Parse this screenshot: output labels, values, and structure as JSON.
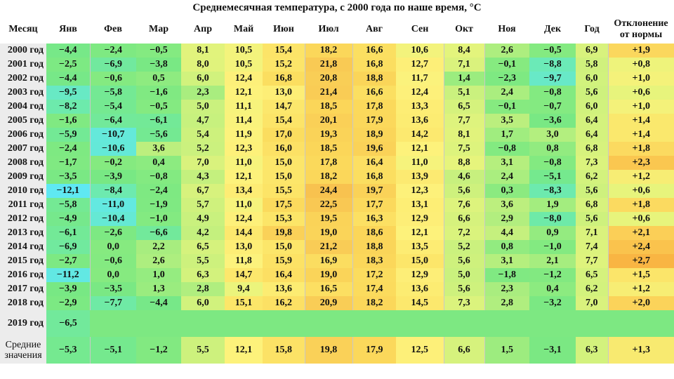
{
  "title": "Среднемесячная температура, с 2000 года по наше время, °C",
  "headers": [
    "Месяц",
    "Янв",
    "Фев",
    "Мар",
    "Апр",
    "Май",
    "Июн",
    "Июл",
    "Авг",
    "Сен",
    "Окт",
    "Ноя",
    "Дек",
    "Год",
    "Отклонение от нормы"
  ],
  "rows": [
    {
      "label": "2000 год",
      "values": [
        "−4,4",
        "−2,4",
        "−0,5",
        "8,1",
        "10,5",
        "15,4",
        "18,2",
        "16,6",
        "10,6",
        "8,4",
        "2,6",
        "−0,5",
        "6,9",
        "+1,9"
      ]
    },
    {
      "label": "2001 год",
      "values": [
        "−2,5",
        "−6,9",
        "−3,8",
        "8,0",
        "10,5",
        "15,2",
        "21,8",
        "16,8",
        "12,7",
        "7,1",
        "−0,1",
        "−8,8",
        "5,8",
        "+0,8"
      ]
    },
    {
      "label": "2002 год",
      "values": [
        "−4,4",
        "−0,6",
        "0,5",
        "6,0",
        "12,4",
        "16,8",
        "20,8",
        "18,8",
        "11,7",
        "1,4",
        "−2,3",
        "−9,7",
        "6,0",
        "+1,0"
      ]
    },
    {
      "label": "2003 год",
      "values": [
        "−9,5",
        "−5,8",
        "−1,6",
        "2,3",
        "12,1",
        "13,0",
        "21,4",
        "16,6",
        "12,4",
        "5,1",
        "2,4",
        "−0,8",
        "5,6",
        "+0,6"
      ]
    },
    {
      "label": "2004 год",
      "values": [
        "−8,2",
        "−5,4",
        "−0,5",
        "5,0",
        "11,1",
        "14,7",
        "18,5",
        "17,8",
        "13,3",
        "6,5",
        "−0,1",
        "−0,7",
        "6,0",
        "+1,0"
      ]
    },
    {
      "label": "2005 год",
      "values": [
        "−1,6",
        "−6,4",
        "−6,1",
        "4,7",
        "11,4",
        "15,4",
        "20,1",
        "17,9",
        "13,6",
        "7,7",
        "3,5",
        "−3,6",
        "6,4",
        "+1,4"
      ]
    },
    {
      "label": "2006 год",
      "values": [
        "−5,9",
        "−10,7",
        "−5,6",
        "5,4",
        "11,9",
        "17,0",
        "19,3",
        "18,9",
        "14,2",
        "8,1",
        "1,7",
        "3,0",
        "6,4",
        "+1,4"
      ]
    },
    {
      "label": "2007 год",
      "values": [
        "−2,4",
        "−10,6",
        "3,6",
        "5,2",
        "12,3",
        "16,0",
        "18,5",
        "19,6",
        "12,1",
        "7,5",
        "−0,8",
        "0,8",
        "6,8",
        "+1,8"
      ]
    },
    {
      "label": "2008 год",
      "values": [
        "−1,7",
        "−0,2",
        "0,4",
        "7,0",
        "11,0",
        "15,0",
        "17,8",
        "16,4",
        "11,0",
        "8,8",
        "3,1",
        "−0,8",
        "7,3",
        "+2,3"
      ]
    },
    {
      "label": "2009 год",
      "values": [
        "−3,5",
        "−3,9",
        "−0,8",
        "4,3",
        "12,1",
        "15,0",
        "18,2",
        "16,8",
        "13,9",
        "4,6",
        "2,4",
        "−5,1",
        "6,2",
        "+1,2"
      ]
    },
    {
      "label": "2010 год",
      "values": [
        "−12,1",
        "−8,4",
        "−2,4",
        "6,7",
        "13,4",
        "15,5",
        "24,4",
        "19,7",
        "12,3",
        "5,6",
        "0,3",
        "−8,3",
        "5,6",
        "+0,6"
      ]
    },
    {
      "label": "2011 год",
      "values": [
        "−5,8",
        "−11,0",
        "−1,9",
        "5,7",
        "11,0",
        "17,5",
        "22,5",
        "17,7",
        "13,1",
        "7,6",
        "3,6",
        "1,9",
        "6,8",
        "+1,8"
      ]
    },
    {
      "label": "2012 год",
      "values": [
        "−4,9",
        "−10,4",
        "−1,0",
        "4,9",
        "12,4",
        "15,3",
        "19,5",
        "16,3",
        "12,9",
        "6,6",
        "2,9",
        "−8,0",
        "5,6",
        "+0,6"
      ]
    },
    {
      "label": "2013 год",
      "values": [
        "−6,1",
        "−2,6",
        "−6,6",
        "4,2",
        "14,4",
        "19,8",
        "19,0",
        "18,6",
        "12,1",
        "7,2",
        "4,4",
        "0,9",
        "7,1",
        "+2,1"
      ]
    },
    {
      "label": "2014 год",
      "values": [
        "−6,9",
        "0,0",
        "2,2",
        "6,5",
        "13,0",
        "15,0",
        "21,2",
        "18,8",
        "13,5",
        "5,2",
        "0,8",
        "−1,0",
        "7,4",
        "+2,4"
      ]
    },
    {
      "label": "2015 год",
      "values": [
        "−2,7",
        "−0,6",
        "2,6",
        "5,5",
        "11,8",
        "15,9",
        "16,9",
        "18,3",
        "15,0",
        "5,6",
        "3,1",
        "2,1",
        "7,7",
        "+2,7"
      ]
    },
    {
      "label": "2016 год",
      "values": [
        "−11,2",
        "0,0",
        "1,0",
        "6,3",
        "14,7",
        "16,4",
        "19,0",
        "17,2",
        "12,9",
        "5,0",
        "−1,8",
        "−1,2",
        "6,5",
        "+1,5"
      ]
    },
    {
      "label": "2017 год",
      "values": [
        "−3,9",
        "−3,5",
        "1,3",
        "2,8",
        "9,4",
        "13,6",
        "16,5",
        "17,4",
        "13,6",
        "5,6",
        "2,3",
        "0,4",
        "6,2",
        "+1,2"
      ]
    },
    {
      "label": "2018 год",
      "values": [
        "−2,9",
        "−7,7",
        "−4,4",
        "6,0",
        "15,1",
        "16,2",
        "20,9",
        "18,2",
        "14,5",
        "7,3",
        "2,8",
        "−3,2",
        "7,0",
        "+2,0"
      ]
    },
    {
      "label": "2019 год",
      "values": [
        "−6,5"
      ]
    },
    {
      "label": "Средние значения",
      "values": [
        "−5,3",
        "−5,1",
        "−1,2",
        "5,5",
        "12,1",
        "15,8",
        "19,8",
        "17,9",
        "12,5",
        "6,6",
        "1,5",
        "−3,1",
        "6,3",
        "+1,3"
      ]
    }
  ],
  "colors": {
    "header_bg": "#ffffff",
    "label_bg": "#ececec",
    "empty_2019": "#7de882"
  }
}
